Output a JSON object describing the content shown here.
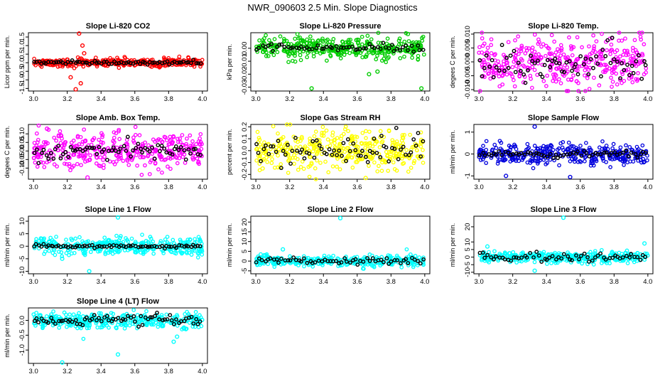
{
  "figure_title": "NWR_090603  2.5 Min. Slope Diagnostics",
  "chart_data": [
    {
      "type": "scatter",
      "title": "Slope Li-820 CO2",
      "ylabel": "Licor ppm per min.",
      "xlim": [
        2.97,
        4.03
      ],
      "ylim": [
        -1.65,
        1.75
      ],
      "xticks": [
        3.0,
        3.2,
        3.4,
        3.6,
        3.8,
        4.0
      ],
      "yticks": [
        -1.5,
        -1.0,
        -0.5,
        0.0,
        0.5,
        1.0,
        1.5
      ],
      "ytick_labels": [
        "-1.5",
        "-1.0",
        "-0.5",
        "0.0",
        "0.5",
        "1.0",
        "1.5"
      ],
      "colors": {
        "primary": "#ff0000",
        "secondary": "#000000"
      },
      "spread": 0.12,
      "secondary_spread": 0.05,
      "count": 360,
      "secondary_count": 70,
      "outliers": [
        [
          3.27,
          1.7
        ],
        [
          3.29,
          1.0
        ],
        [
          3.25,
          -1.55
        ],
        [
          3.28,
          -1.2
        ],
        [
          3.22,
          -0.85
        ],
        [
          3.3,
          0.55
        ]
      ]
    },
    {
      "type": "scatter",
      "title": "Slope Li-820 Pressure",
      "ylabel": "kPa per min.",
      "xlim": [
        2.97,
        4.03
      ],
      "ylim": [
        -0.033,
        0.012
      ],
      "xticks": [
        3.0,
        3.2,
        3.4,
        3.6,
        3.8,
        4.0
      ],
      "yticks": [
        -0.03,
        -0.02,
        -0.01,
        0.0
      ],
      "ytick_labels": [
        "-0.03",
        "-0.02",
        "-0.01",
        "0.00"
      ],
      "colors": {
        "primary": "#00cc00",
        "secondary": "#000000"
      },
      "spread": 0.004,
      "secondary_spread": 0.0015,
      "count": 380,
      "secondary_count": 60,
      "outliers": [
        [
          3.33,
          -0.031
        ],
        [
          3.98,
          -0.031
        ],
        [
          3.9,
          0.011
        ],
        [
          3.67,
          -0.02
        ],
        [
          3.72,
          -0.018
        ]
      ]
    },
    {
      "type": "scatter",
      "title": "Slope Li-820 Temp.",
      "ylabel": "degees C per min.",
      "xlim": [
        2.97,
        4.03
      ],
      "ylim": [
        -0.0105,
        0.0105
      ],
      "xticks": [
        3.0,
        3.2,
        3.4,
        3.6,
        3.8,
        4.0
      ],
      "yticks": [
        -0.01,
        -0.005,
        0.0,
        0.005,
        0.01
      ],
      "ytick_labels": [
        "-0.010",
        "-0.005",
        "0.000",
        "0.005",
        "0.010"
      ],
      "colors": {
        "primary": "#ff00ff",
        "secondary": "#000000"
      },
      "spread": 0.0045,
      "secondary_spread": 0.0035,
      "count": 400,
      "secondary_count": 70,
      "outliers": []
    },
    {
      "type": "scatter",
      "title": "Slope Amb. Box Temp.",
      "ylabel": "degees C per min.",
      "xlim": [
        2.97,
        4.03
      ],
      "ylim": [
        -0.165,
        0.155
      ],
      "xticks": [
        3.0,
        3.2,
        3.4,
        3.6,
        3.8,
        4.0
      ],
      "yticks": [
        -0.1,
        -0.05,
        0.0,
        0.05,
        0.1
      ],
      "ytick_labels": [
        "-0.10",
        "-0.05",
        "0.00",
        "0.05",
        "0.10"
      ],
      "colors": {
        "primary": "#ff00ff",
        "secondary": "#000000"
      },
      "spread": 0.05,
      "secondary_spread": 0.025,
      "count": 380,
      "secondary_count": 70,
      "outliers": [
        [
          3.08,
          0.13
        ],
        [
          3.32,
          -0.155
        ]
      ]
    },
    {
      "type": "scatter",
      "title": "Slope Gas Stream RH",
      "ylabel": "percent per min.",
      "xlim": [
        2.97,
        4.03
      ],
      "ylim": [
        -0.24,
        0.22
      ],
      "xticks": [
        3.0,
        3.2,
        3.4,
        3.6,
        3.8,
        4.0
      ],
      "yticks": [
        -0.2,
        -0.1,
        0.0,
        0.1,
        0.2
      ],
      "ytick_labels": [
        "-0.2",
        "-0.1",
        "0.0",
        "0.1",
        "0.2"
      ],
      "colors": {
        "primary": "#ffff00",
        "secondary": "#000000"
      },
      "spread": 0.085,
      "secondary_spread": 0.06,
      "count": 380,
      "secondary_count": 70,
      "outliers": [
        [
          3.65,
          -0.23
        ],
        [
          3.04,
          -0.15
        ]
      ]
    },
    {
      "type": "scatter",
      "title": "Slope Sample Flow",
      "ylabel": "ml/min per min.",
      "xlim": [
        2.97,
        4.03
      ],
      "ylim": [
        -1.15,
        1.35
      ],
      "xticks": [
        3.0,
        3.2,
        3.4,
        3.6,
        3.8,
        4.0
      ],
      "yticks": [
        -1.0,
        0.0,
        1.0
      ],
      "ytick_labels": [
        "-1",
        "0",
        "1"
      ],
      "colors": {
        "primary": "#0000dd",
        "secondary": "#000000"
      },
      "spread": 0.22,
      "secondary_spread": 0.08,
      "count": 380,
      "secondary_count": 60,
      "outliers": [
        [
          3.33,
          1.25
        ],
        [
          3.16,
          -1.0
        ],
        [
          3.54,
          -1.05
        ]
      ]
    },
    {
      "type": "scatter",
      "title": "Slope Line 1 Flow",
      "ylabel": "ml/min per min.",
      "xlim": [
        2.97,
        4.03
      ],
      "ylim": [
        -11,
        12
      ],
      "xticks": [
        3.0,
        3.2,
        3.4,
        3.6,
        3.8,
        4.0
      ],
      "yticks": [
        -10,
        -5,
        0,
        5,
        10
      ],
      "ytick_labels": [
        "-10",
        "-5",
        "0",
        "5",
        "10"
      ],
      "colors": {
        "primary": "#00ffff",
        "secondary": "#000000"
      },
      "spread": 1.6,
      "secondary_spread": 0.3,
      "count": 360,
      "secondary_count": 70,
      "outliers": [
        [
          3.5,
          11.5
        ],
        [
          3.33,
          -10
        ],
        [
          3.17,
          -5
        ]
      ]
    },
    {
      "type": "scatter",
      "title": "Slope Line 2 Flow",
      "ylabel": "ml/min per min.",
      "xlim": [
        2.97,
        4.03
      ],
      "ylim": [
        -6.5,
        23
      ],
      "xticks": [
        3.0,
        3.2,
        3.4,
        3.6,
        3.8,
        4.0
      ],
      "yticks": [
        -5,
        0,
        5,
        10,
        15,
        20
      ],
      "ytick_labels": [
        "-5",
        "0",
        "5",
        "10",
        "15",
        "20"
      ],
      "colors": {
        "primary": "#00ffff",
        "secondary": "#000000"
      },
      "spread": 1.4,
      "secondary_spread": 0.8,
      "count": 340,
      "secondary_count": 60,
      "outliers": [
        [
          3.5,
          22
        ],
        [
          3.16,
          6
        ],
        [
          3.05,
          3
        ]
      ]
    },
    {
      "type": "scatter",
      "title": "Slope Line 3 Flow",
      "ylabel": "ml/min per min.",
      "xlim": [
        2.97,
        4.03
      ],
      "ylim": [
        -11,
        27
      ],
      "xticks": [
        3.0,
        3.2,
        3.4,
        3.6,
        3.8,
        4.0
      ],
      "yticks": [
        -10,
        -5,
        0,
        5,
        10,
        20
      ],
      "ytick_labels": [
        "-10",
        "-5",
        "0",
        "5",
        "10",
        "20"
      ],
      "colors": {
        "primary": "#00ffff",
        "secondary": "#000000"
      },
      "spread": 1.8,
      "secondary_spread": 1.2,
      "count": 340,
      "secondary_count": 60,
      "outliers": [
        [
          3.5,
          26
        ],
        [
          3.33,
          -9
        ],
        [
          3.98,
          9
        ],
        [
          3.05,
          7
        ]
      ]
    },
    {
      "type": "scatter",
      "title": "Slope Line 4 (LT) Flow",
      "ylabel": "ml/min per min.",
      "xlim": [
        2.97,
        4.03
      ],
      "ylim": [
        -1.45,
        0.42
      ],
      "xticks": [
        3.0,
        3.2,
        3.4,
        3.6,
        3.8,
        4.0
      ],
      "yticks": [
        -1.0,
        -0.5,
        0.0
      ],
      "ytick_labels": [
        "-1.0",
        "-0.5",
        "0.0"
      ],
      "colors": {
        "primary": "#00ffff",
        "secondary": "#000000"
      },
      "spread": 0.13,
      "secondary_spread": 0.09,
      "count": 360,
      "secondary_count": 70,
      "outliers": [
        [
          3.17,
          -1.42
        ],
        [
          3.5,
          -1.15
        ],
        [
          3.83,
          -0.72
        ],
        [
          3.85,
          -0.55
        ]
      ]
    }
  ]
}
